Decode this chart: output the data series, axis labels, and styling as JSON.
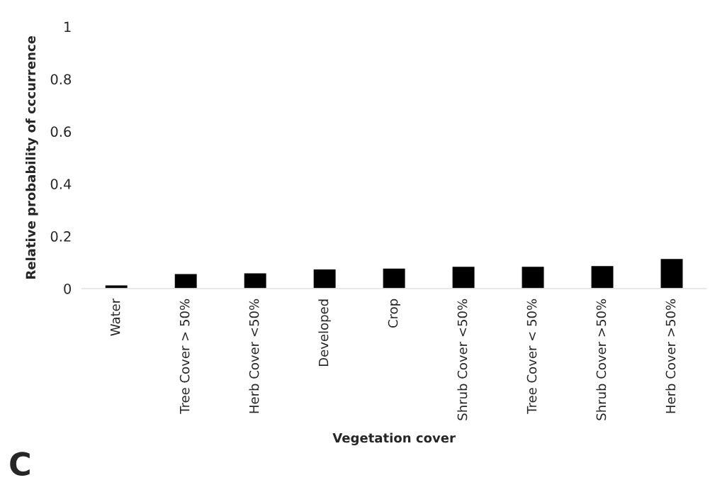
{
  "chart_data": {
    "type": "bar",
    "categories": [
      "Water",
      "Tree Cover > 50%",
      "Herb Cover <50%",
      "Developed",
      "Crop",
      "Shrub Cover <50%",
      "Tree Cover < 50%",
      "Shrub Cover >50%",
      "Herb Cover >50%"
    ],
    "values": [
      0.014,
      0.057,
      0.06,
      0.075,
      0.078,
      0.085,
      0.085,
      0.088,
      0.115
    ],
    "color": "#000000",
    "xlabel": "Vegetation cover",
    "ylabel": "Relative probability of cccurrence",
    "ylim": [
      0,
      1
    ],
    "yticks": [
      0,
      {
        "value": 0.2,
        "label": "0.2"
      },
      {
        "value": 0.4,
        "label": "0.4"
      },
      {
        "value": 0.6,
        "label": "0.6"
      },
      {
        "value": 0.8,
        "label": "0.8"
      },
      1
    ],
    "grid": false,
    "legend": false,
    "annotations": [
      "C"
    ]
  }
}
